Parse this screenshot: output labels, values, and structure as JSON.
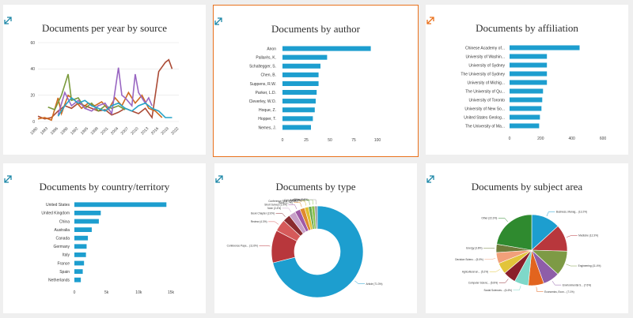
{
  "colors": {
    "bar": "#1d9ecf",
    "expand_icon": "#1f88a8",
    "expand_icon_active": "#e9711c",
    "selected_border": "#e9711c",
    "line_series": [
      "#ab4b36",
      "#cf6b20",
      "#7a9a3c",
      "#9966c2",
      "#26a3c8"
    ]
  },
  "chart_data": [
    {
      "id": "per_year",
      "type": "line",
      "title": "Documents per year by source",
      "xlabel": "",
      "ylabel": "",
      "xlim": [
        1980,
        2022
      ],
      "ylim": [
        0,
        60
      ],
      "yticks": [
        "0",
        "20",
        "40",
        "60"
      ],
      "xticks": [
        "1980",
        "1983",
        "1986",
        "1989",
        "1992",
        "1995",
        "1998",
        "2001",
        "2004",
        "2007",
        "2010",
        "2013",
        "2016",
        "2019",
        "2022"
      ],
      "series": [
        {
          "values": [
            [
              1980,
              4
            ],
            [
              1982,
              2
            ],
            [
              1984,
              3
            ],
            [
              1986,
              8
            ],
            [
              1988,
              12
            ],
            [
              1990,
              10
            ],
            [
              1992,
              14
            ],
            [
              1994,
              12
            ],
            [
              1996,
              10
            ],
            [
              1998,
              8
            ],
            [
              2000,
              9
            ],
            [
              2002,
              5
            ],
            [
              2004,
              7
            ],
            [
              2006,
              10
            ],
            [
              2008,
              8
            ],
            [
              2010,
              6
            ],
            [
              2012,
              10
            ],
            [
              2014,
              3
            ],
            [
              2016,
              38
            ],
            [
              2018,
              45
            ],
            [
              2019,
              47
            ],
            [
              2020,
              40
            ]
          ]
        },
        {
          "values": [
            [
              1980,
              2
            ],
            [
              1982,
              3
            ],
            [
              1984,
              1
            ],
            [
              1986,
              18
            ],
            [
              1987,
              6
            ],
            [
              1989,
              20
            ],
            [
              1991,
              16
            ],
            [
              1993,
              10
            ],
            [
              1995,
              14
            ],
            [
              1997,
              12
            ],
            [
              1999,
              15
            ],
            [
              2001,
              9
            ],
            [
              2003,
              18
            ],
            [
              2005,
              12
            ],
            [
              2007,
              22
            ],
            [
              2009,
              14
            ],
            [
              2011,
              20
            ],
            [
              2013,
              10
            ],
            [
              2015,
              8
            ],
            [
              2017,
              3
            ]
          ]
        },
        {
          "values": [
            [
              1983,
              11
            ],
            [
              1985,
              9
            ],
            [
              1987,
              20
            ],
            [
              1989,
              36
            ],
            [
              1990,
              16
            ],
            [
              1992,
              18
            ],
            [
              1994,
              10
            ],
            [
              1996,
              14
            ],
            [
              1998,
              8
            ],
            [
              2000,
              12
            ],
            [
              2002,
              10
            ],
            [
              2004,
              12
            ],
            [
              2006,
              9
            ]
          ]
        },
        {
          "values": [
            [
              1986,
              5
            ],
            [
              1988,
              22
            ],
            [
              1990,
              12
            ],
            [
              1992,
              16
            ],
            [
              1994,
              10
            ],
            [
              1996,
              8
            ],
            [
              1998,
              12
            ],
            [
              2000,
              14
            ],
            [
              2002,
              6
            ],
            [
              2004,
              41
            ],
            [
              2005,
              20
            ],
            [
              2006,
              18
            ],
            [
              2008,
              12
            ],
            [
              2009,
              36
            ],
            [
              2010,
              22
            ],
            [
              2012,
              14
            ],
            [
              2013,
              18
            ],
            [
              2014,
              12
            ]
          ]
        },
        {
          "values": [
            [
              1986,
              4
            ],
            [
              1988,
              12
            ],
            [
              1990,
              18
            ],
            [
              1992,
              14
            ],
            [
              1994,
              16
            ],
            [
              1996,
              12
            ],
            [
              1998,
              10
            ],
            [
              2000,
              8
            ],
            [
              2002,
              12
            ],
            [
              2004,
              14
            ],
            [
              2006,
              10
            ],
            [
              2008,
              8
            ],
            [
              2010,
              12
            ],
            [
              2012,
              14
            ],
            [
              2014,
              10
            ],
            [
              2016,
              8
            ],
            [
              2018,
              3
            ],
            [
              2020,
              3
            ]
          ]
        }
      ]
    },
    {
      "id": "by_author",
      "type": "bar",
      "title": "Documents by author",
      "xlim": [
        0,
        125
      ],
      "xticks": [
        "0",
        "25",
        "50",
        "75",
        "100"
      ],
      "xtick_values": [
        0,
        25,
        50,
        75,
        100
      ],
      "categories": [
        "Anon",
        "Pallarès, K.",
        "Schaltegger, S.",
        "Chen, B.",
        "Suppens, R.W.",
        "Parker, L.D.",
        "Cleverley, W.O.",
        "Hoque, Z.",
        "Hopper, T.",
        "Nemes, J."
      ],
      "values": [
        93,
        47,
        40,
        38,
        38,
        36,
        35,
        34,
        32,
        30
      ]
    },
    {
      "id": "by_affiliation",
      "type": "bar",
      "title": "Documents by affiliation",
      "xlim": [
        0,
        600
      ],
      "xticks": [
        "0",
        "200",
        "400",
        "600"
      ],
      "xtick_values": [
        0,
        200,
        400,
        600
      ],
      "categories": [
        "Chinese Academy of...",
        "University of Washin...",
        "University of Sydney",
        "The University of Sydney",
        "University of Michig...",
        "The University of Qu...",
        "University of Toronto",
        "University of New So...",
        "United States Geolog...",
        "The University of Ma..."
      ],
      "values": [
        450,
        240,
        240,
        240,
        240,
        215,
        210,
        205,
        195,
        190
      ]
    },
    {
      "id": "by_country",
      "type": "bar",
      "title": "Documents by country/territory",
      "xlim": [
        0,
        15000
      ],
      "xticks": [
        "0",
        "5k",
        "10k",
        "15k"
      ],
      "xtick_values": [
        0,
        5000,
        10000,
        15000
      ],
      "categories": [
        "United States",
        "United Kingdom",
        "China",
        "Australia",
        "Canada",
        "Germany",
        "Italy",
        "France",
        "Spain",
        "Netherlands"
      ],
      "values": [
        14300,
        4100,
        3800,
        2700,
        2100,
        1900,
        1800,
        1500,
        1300,
        1000
      ]
    },
    {
      "id": "by_type",
      "type": "pie",
      "title": "Documents by type",
      "donut": true,
      "slices": [
        {
          "label": "Article (71.3%)",
          "value": 71.3,
          "color": "#1d9ecf"
        },
        {
          "label": "Conference Pape... (11.6%)",
          "value": 11.6,
          "color": "#b8373c"
        },
        {
          "label": "Review (4.3%)",
          "value": 4.3,
          "color": "#d65a5a"
        },
        {
          "label": "Book Chapter (2.6%)",
          "value": 2.6,
          "color": "#8a2b2f"
        },
        {
          "label": "Note (2.4%)",
          "value": 2.4,
          "color": "#c8a0c8"
        },
        {
          "label": "Short Survey (1.9%)",
          "value": 1.9,
          "color": "#a05aa6"
        },
        {
          "label": "Book (1.7%)",
          "value": 1.7,
          "color": "#e08a2e"
        },
        {
          "label": "Conference Revi... (1.4%)",
          "value": 1.4,
          "color": "#e0c032"
        },
        {
          "label": "Editorial (1.1%)",
          "value": 1.1,
          "color": "#6aa84f"
        },
        {
          "label": "Letter (1.1%)",
          "value": 1.1,
          "color": "#8bc34a"
        },
        {
          "label": "Other (0.9%)",
          "value": 0.9,
          "color": "#9e9e9e"
        }
      ]
    },
    {
      "id": "by_subject",
      "type": "pie",
      "title": "Documents by subject area",
      "donut": false,
      "slices": [
        {
          "label": "Business, Manag... (13.2%)",
          "value": 13.2,
          "color": "#1d9ecf"
        },
        {
          "label": "Medicine (12.3%)",
          "value": 12.3,
          "color": "#b8373c"
        },
        {
          "label": "Engineering (11.4%)",
          "value": 11.4,
          "color": "#7d9a45"
        },
        {
          "label": "Environmental S... (7.6%)",
          "value": 7.6,
          "color": "#8e5ea8"
        },
        {
          "label": "Economics, Econ... (7.1%)",
          "value": 7.1,
          "color": "#e2641e"
        },
        {
          "label": "Social Sciences... (6.4%)",
          "value": 6.4,
          "color": "#7fd8c9"
        },
        {
          "label": "Computer Scienc... (5.8%)",
          "value": 5.8,
          "color": "#8a1f2a"
        },
        {
          "label": "Agricultural an... (5.2%)",
          "value": 5.2,
          "color": "#e2c43a"
        },
        {
          "label": "Decision Scienc... (5.0%)",
          "value": 5.0,
          "color": "#f1a07a"
        },
        {
          "label": "Energy (3.8%)",
          "value": 3.8,
          "color": "#6f7c3a"
        },
        {
          "label": "Other (22.3%)",
          "value": 22.3,
          "color": "#2f8a2f"
        }
      ]
    }
  ]
}
